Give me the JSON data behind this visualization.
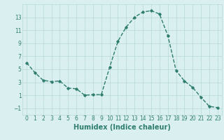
{
  "x": [
    0,
    1,
    2,
    3,
    4,
    5,
    6,
    7,
    8,
    9,
    10,
    11,
    12,
    13,
    14,
    15,
    16,
    17,
    18,
    19,
    20,
    21,
    22,
    23
  ],
  "y": [
    6.0,
    4.5,
    3.3,
    3.1,
    3.2,
    2.1,
    2.0,
    1.0,
    1.1,
    1.1,
    5.3,
    9.3,
    11.5,
    13.0,
    13.8,
    14.0,
    13.5,
    10.2,
    4.8,
    3.2,
    2.2,
    0.7,
    -0.7,
    -0.9
  ],
  "line_color": "#2e7d6e",
  "marker": "D",
  "marker_size": 1.8,
  "linewidth": 1.0,
  "xlabel": "Humidex (Indice chaleur)",
  "xlabel_fontsize": 7,
  "xlim": [
    -0.5,
    23.5
  ],
  "ylim": [
    -2,
    15
  ],
  "yticks": [
    -1,
    1,
    3,
    5,
    7,
    9,
    11,
    13
  ],
  "xticks": [
    0,
    1,
    2,
    3,
    4,
    5,
    6,
    7,
    8,
    9,
    10,
    11,
    12,
    13,
    14,
    15,
    16,
    17,
    18,
    19,
    20,
    21,
    22,
    23
  ],
  "bg_color": "#daf0f0",
  "grid_color": "#b8d8d8",
  "tick_fontsize": 5.5
}
